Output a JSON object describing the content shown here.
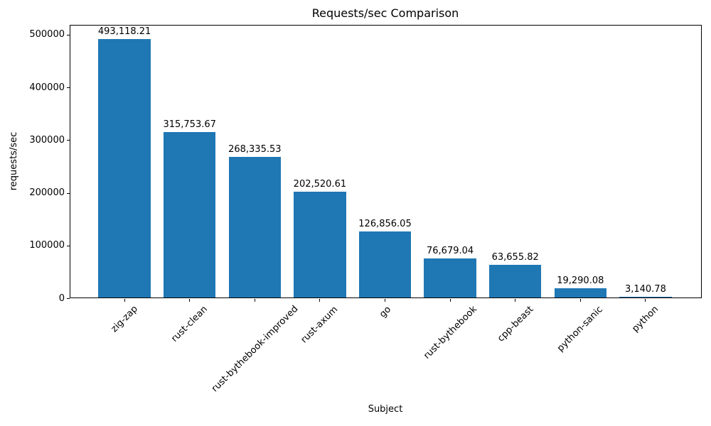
{
  "chart_data": {
    "type": "bar",
    "title": "Requests/sec Comparison",
    "xlabel": "Subject",
    "ylabel": "requests/sec",
    "categories": [
      "zig-zap",
      "rust-clean",
      "rust-bythebook-improved",
      "rust-axum",
      "go",
      "rust-bythebook",
      "cpp-beast",
      "python-sanic",
      "python"
    ],
    "values": [
      493118.21,
      315753.67,
      268335.53,
      202520.61,
      126856.05,
      76679.04,
      63655.82,
      19290.08,
      3140.78
    ],
    "value_labels": [
      "493,118.21",
      "315,753.67",
      "268,335.53",
      "202,520.61",
      "126,856.05",
      "76,679.04",
      "63,655.82",
      "19,290.08",
      "3,140.78"
    ],
    "yticks": [
      0,
      100000,
      200000,
      300000,
      400000,
      500000
    ],
    "ytick_labels": [
      "0",
      "100000",
      "200000",
      "300000",
      "400000",
      "500000"
    ],
    "ylim": [
      0,
      519500
    ],
    "bar_color": "#1f77b4",
    "grid": false,
    "legend_position": "none"
  }
}
